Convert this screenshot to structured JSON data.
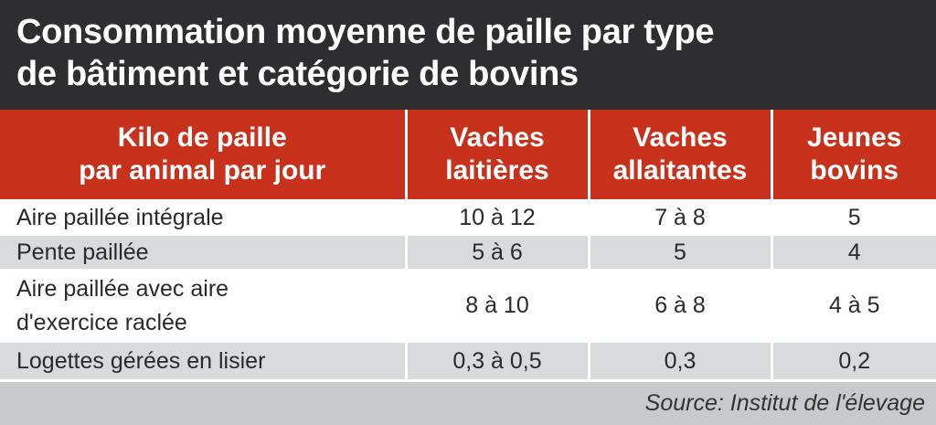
{
  "title": {
    "line1": "Consommation moyenne de paille par type",
    "line2": "de bâtiment et catégorie de bovins"
  },
  "table": {
    "headers": [
      {
        "line1": "Kilo de paille",
        "line2": "par animal par jour"
      },
      {
        "line1": "Vaches",
        "line2": "laitières"
      },
      {
        "line1": "Vaches",
        "line2": "allaitantes"
      },
      {
        "line1": "Jeunes",
        "line2": "bovins"
      }
    ],
    "rows": [
      {
        "label": "Aire paillée intégrale",
        "vaches_laitieres": "10 à 12",
        "vaches_allaitantes": "7 à 8",
        "jeunes_bovins": "5"
      },
      {
        "label": "Pente paillée",
        "vaches_laitieres": "5 à 6",
        "vaches_allaitantes": "5",
        "jeunes_bovins": "4"
      },
      {
        "label_line1": "Aire paillée avec aire",
        "label_line2": "d'exercice raclée",
        "vaches_laitieres": "8 à 10",
        "vaches_allaitantes": "6 à 8",
        "jeunes_bovins": "4 à 5"
      },
      {
        "label": "Logettes gérées en lisier",
        "vaches_laitieres": "0,3 à 0,5",
        "vaches_allaitantes": "0,3",
        "jeunes_bovins": "0,2"
      }
    ]
  },
  "source": "Source: Institut de l'élevage",
  "colors": {
    "title_bg": "#2e2e30",
    "header_bg": "#c8311c",
    "stripe": "#d9dadb",
    "source_bg": "#c8c9ca"
  }
}
